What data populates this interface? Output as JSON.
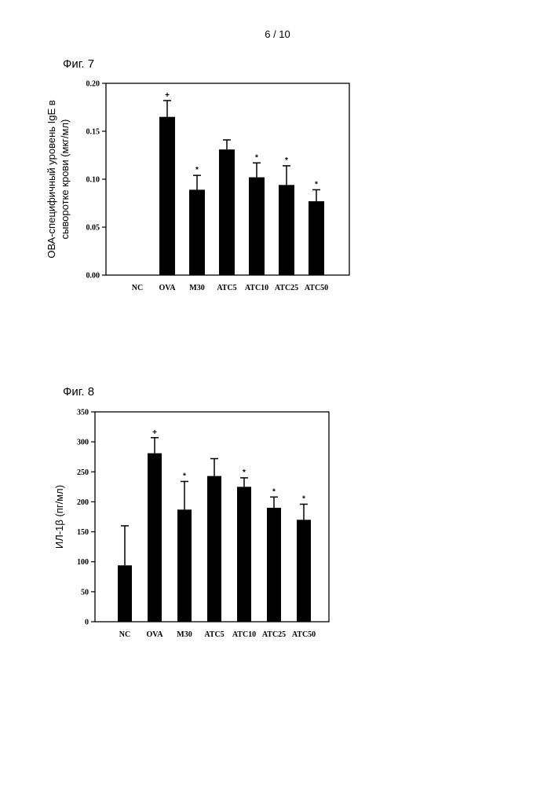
{
  "page": {
    "number": "6 / 10"
  },
  "figures": [
    {
      "label": "Фиг. 7"
    },
    {
      "label": "Фиг. 8"
    }
  ],
  "chart_data": [
    {
      "type": "bar",
      "title": "",
      "xlabel": "",
      "ylabel_lines": [
        "ОВА-специфичный уровень IgE в",
        "сыворотке крови (мкг/мл)"
      ],
      "categories": [
        "NC",
        "OVA",
        "M30",
        "ATC5",
        "ATC10",
        "ATC25",
        "ATC50"
      ],
      "values": [
        0,
        0.165,
        0.089,
        0.131,
        0.102,
        0.094,
        0.077
      ],
      "errors": [
        0,
        0.017,
        0.015,
        0.01,
        0.015,
        0.02,
        0.012
      ],
      "markers": [
        "",
        "+",
        "*",
        "",
        "*",
        "*",
        "*"
      ],
      "ylim": [
        0,
        0.2
      ],
      "yticks": [
        "0.00",
        "0.05",
        "0.10",
        "0.15",
        "0.20"
      ],
      "bar_color": "#000000",
      "grid": false
    },
    {
      "type": "bar",
      "title": "",
      "xlabel": "",
      "ylabel_lines": [
        "ИЛ-1β (пг/мл)"
      ],
      "categories": [
        "NC",
        "OVA",
        "M30",
        "ATC5",
        "ATC10",
        "ATC25",
        "ATC50"
      ],
      "values": [
        94,
        281,
        187,
        243,
        225,
        190,
        170
      ],
      "errors": [
        66,
        26,
        47,
        29,
        15,
        18,
        26
      ],
      "markers": [
        "",
        "+",
        "*",
        "",
        "*",
        "*",
        "*"
      ],
      "ylim": [
        0,
        350
      ],
      "yticks": [
        "0",
        "50",
        "100",
        "150",
        "200",
        "250",
        "300",
        "350"
      ],
      "bar_color": "#000000",
      "grid": false
    }
  ]
}
